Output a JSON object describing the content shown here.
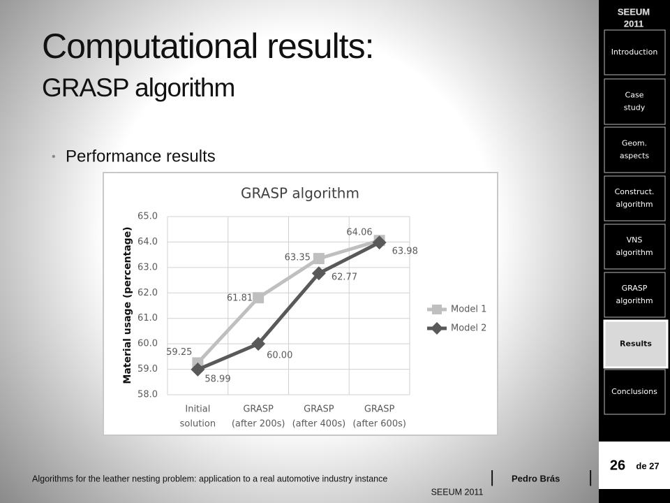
{
  "header": {
    "title": "Computational results:",
    "subtitle": "GRASP algorithm"
  },
  "bullets": [
    "Performance results"
  ],
  "chart_data": {
    "type": "line",
    "title": "GRASP algorithm",
    "y_label": "Material usage (percentage)",
    "categories": [
      [
        "Initial",
        "solution"
      ],
      [
        "GRASP",
        "(after 200s)"
      ],
      [
        "GRASP",
        "(after 400s)"
      ],
      [
        "GRASP",
        "(after 600s)"
      ]
    ],
    "series": [
      {
        "name": "Model 1",
        "color": "#bfbfbf",
        "marker": "square",
        "values": [
          59.25,
          61.81,
          63.35,
          64.06
        ],
        "value_labels": [
          "59.25",
          "61.81",
          "63.35",
          "64.06"
        ]
      },
      {
        "name": "Model 2",
        "color": "#595959",
        "marker": "diamond",
        "values": [
          58.99,
          60,
          62.77,
          63.98
        ],
        "value_labels": [
          "58.99",
          "60.00",
          "62.77",
          "63.98"
        ]
      }
    ],
    "ylim": [
      58,
      65
    ],
    "yticks": [
      {
        "value": 58,
        "label": "58.0"
      },
      {
        "value": 59,
        "label": "59.0"
      },
      {
        "value": 60,
        "label": "60.0"
      },
      {
        "value": 61,
        "label": "61.0"
      },
      {
        "value": 62,
        "label": "62.0"
      },
      {
        "value": 63,
        "label": "63.0"
      },
      {
        "value": 64,
        "label": "64.0"
      },
      {
        "value": 65,
        "label": "65.0"
      }
    ],
    "grid": true,
    "legend": "right"
  },
  "sidebar": {
    "logo": [
      "SEEUM",
      "2011"
    ],
    "nav": [
      [
        "Introduction"
      ],
      [
        "Case",
        "study"
      ],
      [
        "Geom.",
        "aspects"
      ],
      [
        "Construct.",
        "algorithm"
      ],
      [
        "VNS",
        "algorithm"
      ],
      [
        "GRASP",
        "algorithm"
      ],
      [
        "Results"
      ],
      [
        "Conclusions"
      ]
    ]
  },
  "page": {
    "current": "26",
    "of": "de 27"
  },
  "footer": {
    "text": "Algorithms for the leather nesting problem: application to a real automotive industry instance",
    "author": "Pedro Brás",
    "event": "SEEUM 2011"
  }
}
